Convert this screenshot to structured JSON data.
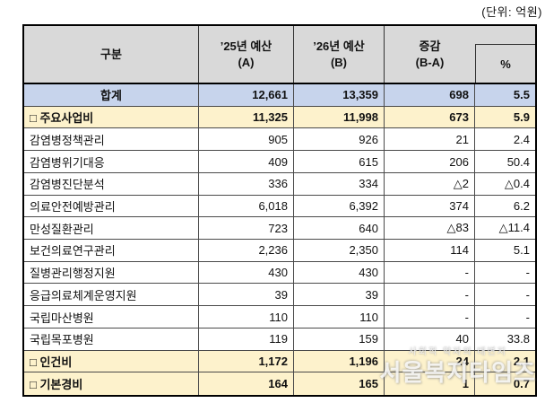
{
  "unit_label": "(단위: 억원)",
  "table": {
    "header": {
      "col1": "구분",
      "col2": {
        "line1": "’25년 예산",
        "line2": "(A)"
      },
      "col3": {
        "line1": "’26년 예산",
        "line2": "(B)"
      },
      "col4": {
        "line1": "증감",
        "line2": "(B-A)"
      },
      "col5": "%"
    },
    "rows": [
      {
        "label": "합계",
        "a": "12,661",
        "b": "13,359",
        "diff": "698",
        "pct": "5.5",
        "style": "total"
      },
      {
        "label": "□ 주요사업비",
        "a": "11,325",
        "b": "11,998",
        "diff": "673",
        "pct": "5.9",
        "style": "section"
      },
      {
        "label": "감염병정책관리",
        "a": "905",
        "b": "926",
        "diff": "21",
        "pct": "2.4",
        "style": "detail"
      },
      {
        "label": "감염병위기대응",
        "a": "409",
        "b": "615",
        "diff": "206",
        "pct": "50.4",
        "style": "detail"
      },
      {
        "label": "감염병진단분석",
        "a": "336",
        "b": "334",
        "diff": "△2",
        "pct": "△0.4",
        "style": "detail"
      },
      {
        "label": "의료안전예방관리",
        "a": "6,018",
        "b": "6,392",
        "diff": "374",
        "pct": "6.2",
        "style": "detail"
      },
      {
        "label": "만성질환관리",
        "a": "723",
        "b": "640",
        "diff": "△83",
        "pct": "△11.4",
        "style": "detail"
      },
      {
        "label": "보건의료연구관리",
        "a": "2,236",
        "b": "2,350",
        "diff": "114",
        "pct": "5.1",
        "style": "detail"
      },
      {
        "label": "질병관리행정지원",
        "a": "430",
        "b": "430",
        "diff": "-",
        "pct": "-",
        "style": "detail"
      },
      {
        "label": "응급의료체계운영지원",
        "a": "39",
        "b": "39",
        "diff": "-",
        "pct": "-",
        "style": "detail"
      },
      {
        "label": "국립마산병원",
        "a": "110",
        "b": "110",
        "diff": "-",
        "pct": "-",
        "style": "detail"
      },
      {
        "label": "국립목포병원",
        "a": "119",
        "b": "159",
        "diff": "40",
        "pct": "33.8",
        "style": "detail"
      },
      {
        "label": "□ 인건비",
        "a": "1,172",
        "b": "1,196",
        "diff": "24",
        "pct": "2.1",
        "style": "section"
      },
      {
        "label": "□ 기본경비",
        "a": "164",
        "b": "165",
        "diff": "1",
        "pct": "0.7",
        "style": "section"
      }
    ]
  },
  "watermark": {
    "slogan": "사회적 약자의 대변지",
    "name": "서울복지타임즈"
  },
  "colors": {
    "header_bg": "#d9d9d9",
    "total_row_bg": "#c7d4ec",
    "section_row_bg": "#fdf2cc",
    "border_thick": "#000000",
    "border_thin": "#4a4a4a"
  }
}
